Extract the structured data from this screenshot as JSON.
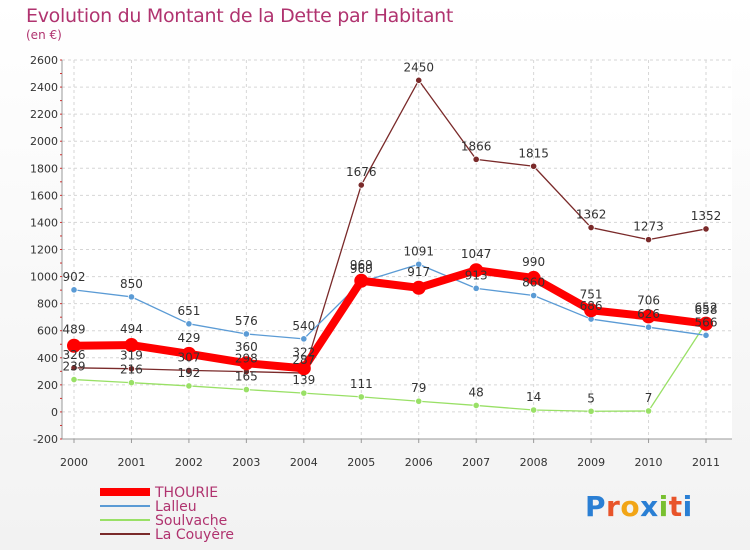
{
  "chart_data": {
    "type": "line",
    "title": "Evolution du Montant de la Dette par Habitant",
    "subtitle": "(en €)",
    "x": [
      "2000",
      "2001",
      "2002",
      "2003",
      "2004",
      "2005",
      "2006",
      "2007",
      "2008",
      "2009",
      "2010",
      "2011"
    ],
    "ylim": [
      -200,
      2600
    ],
    "yticks": [
      -200,
      0,
      200,
      400,
      600,
      800,
      1000,
      1200,
      1400,
      1600,
      1800,
      2000,
      2200,
      2400,
      2600
    ],
    "grid": true,
    "legend_position": "bottom-left",
    "series": [
      {
        "name": "THOURIE",
        "color": "#ff0000",
        "values": [
          489,
          494,
          429,
          360,
          322,
          969,
          917,
          1047,
          990,
          751,
          706,
          652
        ]
      },
      {
        "name": "Lalleu",
        "color": "#5b9bd5",
        "values": [
          902,
          850,
          651,
          576,
          540,
          960,
          1091,
          913,
          860,
          686,
          626,
          566
        ]
      },
      {
        "name": "Soulvache",
        "color": "#99e066",
        "values": [
          239,
          216,
          192,
          165,
          139,
          111,
          79,
          48,
          14,
          5,
          7,
          658
        ]
      },
      {
        "name": "La Couyère",
        "color": "#7a2a2a",
        "values": [
          326,
          319,
          307,
          298,
          287,
          1676,
          2450,
          1866,
          1815,
          1362,
          1273,
          1352
        ]
      }
    ]
  },
  "logo": {
    "letters": [
      "P",
      "r",
      "o",
      "x",
      "i",
      "t",
      "i"
    ],
    "colors": [
      "#2a7fd4",
      "#e8542a",
      "#f2a516",
      "#2a7fd4",
      "#78c030",
      "#e8542a",
      "#2a7fd4"
    ]
  }
}
